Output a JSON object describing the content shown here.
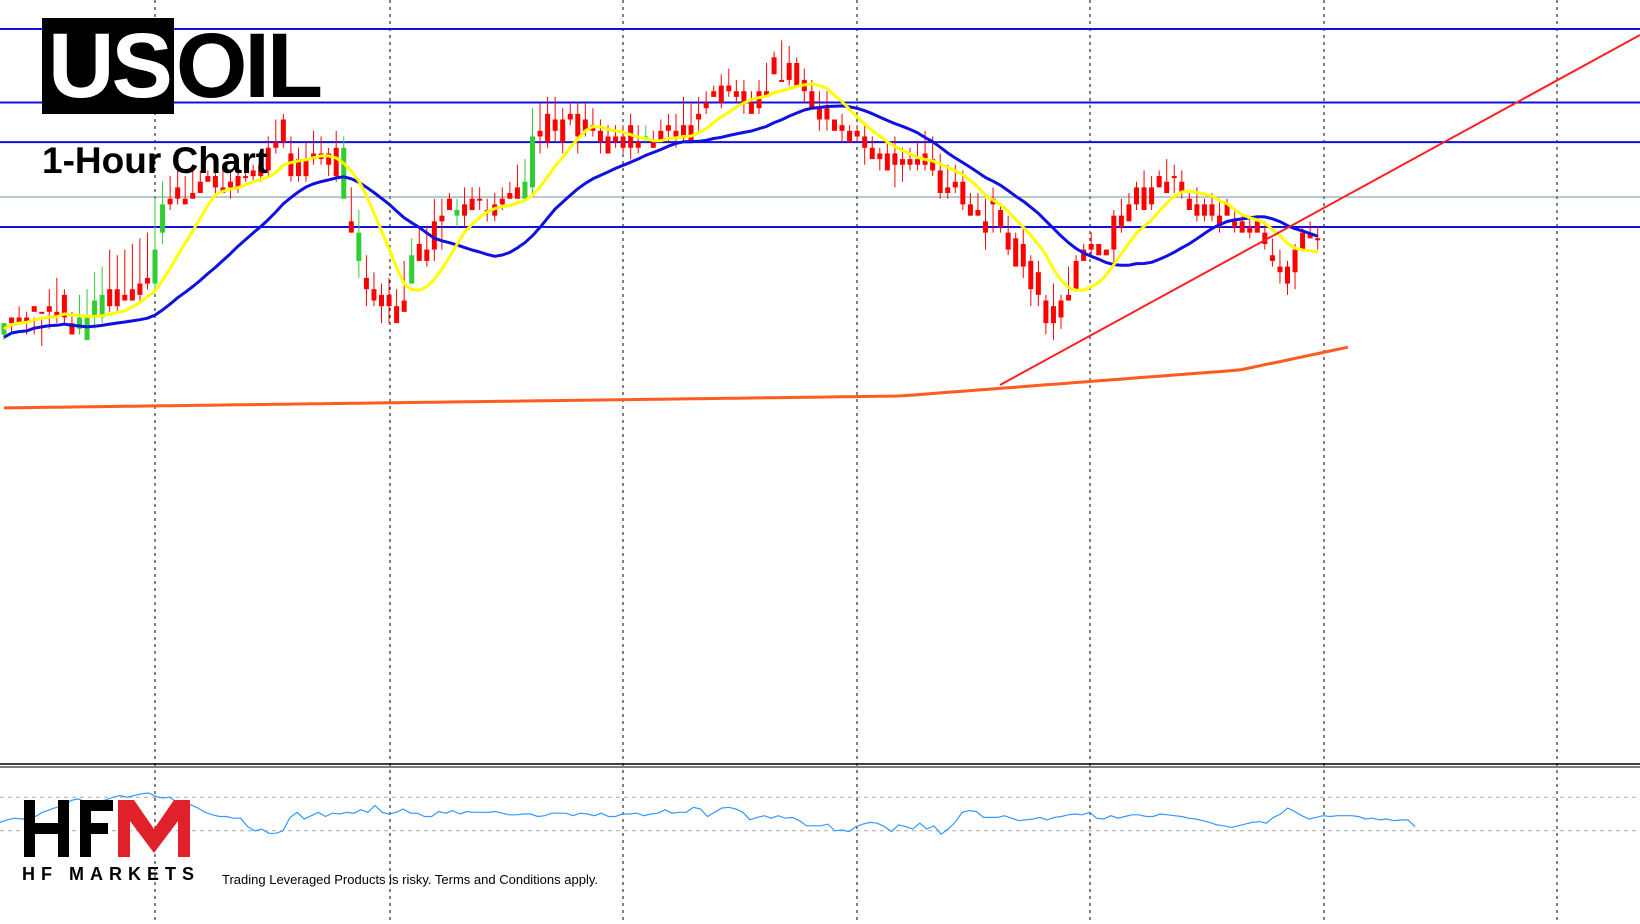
{
  "header": {
    "title_inverted": "US",
    "title_rest": "OIL",
    "subtitle": "1-Hour Chart"
  },
  "brand": {
    "logo_text": "HFM",
    "logo_subtext": "HF MARKETS",
    "disclaimer": "Trading Leveraged Products is risky. Terms and Conditions apply."
  },
  "colors": {
    "bull_candle": "#33cc33",
    "bear_candle": "#ff0000",
    "fast_ma": "#ffff00",
    "slow_ma": "#1010e0",
    "long_ma": "#ff5a1f",
    "trendline": "#ff2020",
    "horizontal_levels": "#1010e0",
    "oscillator": "#3399ff",
    "logo_red": "#e0202a"
  },
  "chart_data": {
    "type": "candlestick",
    "title": "",
    "xlabel": "",
    "ylabel": "",
    "grid": true,
    "legend": "none",
    "ylim": [
      1,
      100
    ],
    "candles": [
      [
        53,
        53,
        55,
        56,
        3
      ],
      [
        52,
        52,
        53,
        55,
        -2
      ],
      [
        50,
        52,
        53,
        53,
        -2
      ],
      [
        51,
        52,
        53,
        55,
        -2
      ],
      [
        52,
        50,
        51,
        55,
        -2
      ],
      [
        52,
        51,
        51,
        57,
        -2
      ],
      [
        47,
        50,
        51,
        54,
        -2
      ],
      [
        45,
        51,
        52,
        53,
        -3
      ],
      [
        47,
        48,
        52,
        53,
        -4
      ],
      [
        51,
        53,
        55,
        55,
        -3
      ],
      [
        48,
        52,
        54,
        55,
        5
      ],
      [
        47,
        52,
        56,
        56,
        3
      ],
      [
        44,
        49,
        52,
        54,
        2
      ],
      [
        43,
        48,
        52,
        53,
        4
      ],
      [
        40,
        47,
        50,
        51,
        -3
      ],
      [
        41,
        47,
        50,
        51,
        -2
      ],
      [
        40,
        48,
        49,
        49,
        -2
      ],
      [
        39,
        47,
        49,
        49,
        -3
      ],
      [
        38,
        46,
        48,
        49,
        -3
      ],
      [
        37,
        45,
        46,
        47,
        -4
      ],
      [
        31,
        40,
        46,
        47,
        9
      ],
      [
        28,
        32,
        37,
        39,
        3
      ],
      [
        27,
        31,
        32,
        33,
        -3
      ],
      [
        26,
        29,
        31,
        32,
        -2
      ],
      [
        27,
        31,
        32,
        32,
        -3
      ],
      [
        26,
        30,
        31,
        31,
        -2
      ],
      [
        26,
        28,
        30,
        30,
        -2
      ],
      [
        26,
        27,
        28,
        28,
        -3
      ],
      [
        25,
        27,
        29,
        30,
        -3
      ],
      [
        26,
        29,
        30,
        30,
        -2
      ],
      [
        26,
        28,
        29,
        31,
        -3
      ],
      [
        25,
        27,
        29,
        30,
        -4
      ],
      [
        25,
        27,
        27,
        28,
        -2
      ],
      [
        25,
        26,
        27,
        28,
        -2
      ],
      [
        23,
        25,
        27,
        28,
        -2
      ],
      [
        20,
        22,
        26,
        27,
        -3
      ],
      [
        17,
        21,
        22,
        23,
        -3
      ],
      [
        16,
        17,
        21,
        22,
        -3
      ],
      [
        20,
        23,
        27,
        28,
        -3
      ],
      [
        22,
        24,
        27,
        28,
        -2
      ],
      [
        21,
        24,
        27,
        28,
        -3
      ],
      [
        19,
        23,
        24,
        25,
        -2
      ],
      [
        20,
        23,
        24,
        25,
        -3
      ],
      [
        22,
        23,
        25,
        27,
        -2
      ],
      [
        19,
        22,
        27,
        28,
        -2
      ],
      [
        20,
        22,
        31,
        31,
        5
      ],
      [
        29,
        35,
        37,
        37,
        -3
      ],
      [
        33,
        37,
        42,
        45,
        5
      ],
      [
        41,
        45,
        47,
        50,
        -2
      ],
      [
        44,
        47,
        49,
        50,
        -3
      ],
      [
        46,
        48,
        50,
        53,
        -2
      ],
      [
        45,
        48,
        50,
        53,
        -5
      ],
      [
        47,
        50,
        53,
        53,
        -4
      ],
      [
        42,
        49,
        51,
        51,
        -5
      ],
      [
        38,
        41,
        46,
        46,
        6
      ],
      [
        36,
        39,
        42,
        42,
        -3
      ],
      [
        36,
        40,
        42,
        43,
        -3
      ],
      [
        31,
        35,
        40,
        42,
        -4
      ],
      [
        31,
        34,
        35,
        40,
        -3
      ],
      [
        30,
        31,
        33,
        33,
        -3
      ],
      [
        31,
        33,
        34,
        36,
        3
      ],
      [
        29,
        32,
        34,
        36,
        -2
      ],
      [
        29,
        31,
        33,
        33,
        -2
      ],
      [
        29,
        31,
        31,
        33,
        -3
      ],
      [
        31,
        33,
        33,
        35,
        -2
      ],
      [
        30,
        32,
        34,
        35,
        -2
      ],
      [
        29,
        31,
        32,
        33,
        -3
      ],
      [
        28,
        30,
        31,
        31,
        -2
      ],
      [
        25,
        29,
        31,
        31,
        -2
      ],
      [
        24,
        28,
        31,
        31,
        4
      ],
      [
        15,
        20,
        29,
        30,
        6
      ],
      [
        14,
        19,
        20,
        23,
        -3
      ],
      [
        13,
        16,
        21,
        22,
        -3
      ],
      [
        13,
        17,
        19,
        21,
        -2
      ],
      [
        15,
        17,
        21,
        23,
        -3
      ],
      [
        14,
        16,
        17,
        18,
        -3
      ],
      [
        14,
        16,
        20,
        23,
        -2
      ],
      [
        14,
        17,
        19,
        20,
        -3
      ],
      [
        15,
        18,
        19,
        20,
        -2
      ],
      [
        17,
        19,
        21,
        23,
        -2
      ],
      [
        18,
        20,
        23,
        23,
        -2
      ],
      [
        18,
        20,
        21,
        22,
        -4
      ],
      [
        18,
        20,
        22,
        23,
        -3
      ],
      [
        16,
        18,
        22,
        24,
        -4
      ],
      [
        18,
        21,
        22,
        23,
        -2
      ],
      [
        18,
        20,
        20,
        21,
        3
      ],
      [
        19,
        21,
        22,
        22,
        -3
      ],
      [
        17,
        19,
        21,
        21,
        -3
      ],
      [
        16,
        18,
        19,
        21,
        -2
      ],
      [
        16,
        19,
        20,
        22,
        -3
      ],
      [
        13,
        18,
        20,
        21,
        -2
      ],
      [
        14,
        18,
        21,
        21,
        -2
      ],
      [
        13,
        16,
        17,
        19,
        -2
      ],
      [
        12,
        14,
        15,
        16,
        -2
      ],
      [
        11,
        12,
        13,
        13,
        -2
      ],
      [
        9,
        11,
        14,
        15,
        -2
      ],
      [
        8,
        11,
        12,
        13,
        -2
      ],
      [
        10,
        12,
        13,
        14,
        -3
      ],
      [
        10,
        12,
        14,
        16,
        -3
      ],
      [
        12,
        14,
        16,
        16,
        -2
      ],
      [
        10,
        12,
        15,
        16,
        -3
      ],
      [
        7,
        12,
        13,
        13,
        -3
      ],
      [
        5,
        6,
        9,
        9,
        -3
      ],
      [
        3,
        10,
        10,
        10,
        -3
      ],
      [
        4,
        7,
        10,
        11,
        -3
      ],
      [
        6,
        7,
        11,
        11,
        -2
      ],
      [
        8,
        10,
        12,
        14,
        -2
      ],
      [
        10,
        12,
        15,
        15,
        -3
      ],
      [
        12,
        15,
        17,
        19,
        -3
      ],
      [
        12,
        15,
        17,
        19,
        -3
      ],
      [
        17,
        17,
        19,
        19,
        -3
      ],
      [
        16,
        18,
        19,
        21,
        -2
      ],
      [
        18,
        19,
        21,
        21,
        -2
      ],
      [
        18,
        19,
        20,
        21,
        -3
      ],
      [
        18,
        20,
        22,
        25,
        -3
      ],
      [
        20,
        22,
        24,
        24,
        -3
      ],
      [
        22,
        23,
        24,
        26,
        -3
      ],
      [
        21,
        23,
        26,
        26,
        -2
      ],
      [
        20,
        23,
        25,
        29,
        -2
      ],
      [
        22,
        24,
        25,
        28,
        -4
      ],
      [
        22,
        24,
        25,
        26,
        -3
      ],
      [
        21,
        24,
        25,
        26,
        -2
      ],
      [
        19,
        23,
        25,
        26,
        -5
      ],
      [
        20,
        24,
        26,
        27,
        -2
      ],
      [
        23,
        26,
        30,
        31,
        -3
      ],
      [
        25,
        29,
        30,
        31,
        -2
      ],
      [
        25,
        28,
        29,
        30,
        -4
      ],
      [
        26,
        28,
        32,
        33,
        -4
      ],
      [
        30,
        32,
        34,
        34,
        -3
      ],
      [
        30,
        33,
        34,
        34,
        -4
      ],
      [
        31,
        35,
        37,
        40,
        -2
      ],
      [
        29,
        31,
        32,
        37,
        -3
      ],
      [
        32,
        33,
        36,
        37,
        -2
      ],
      [
        34,
        37,
        40,
        41,
        -2
      ],
      [
        37,
        38,
        43,
        43,
        -2
      ],
      [
        36,
        39,
        43,
        45,
        -2
      ],
      [
        41,
        42,
        47,
        50,
        -4
      ],
      [
        42,
        44,
        48,
        50,
        -3
      ],
      [
        48,
        49,
        53,
        55,
        -4
      ],
      [
        46,
        50,
        53,
        56,
        -2
      ],
      [
        48,
        49,
        52,
        54,
        -2
      ],
      [
        43,
        48,
        49,
        49,
        -2
      ],
      [
        41,
        42,
        47,
        47,
        -4
      ],
      [
        39,
        40,
        42,
        42,
        -3
      ],
      [
        37,
        39,
        40,
        41,
        -3
      ],
      [
        39,
        39,
        41,
        41,
        -2
      ],
      [
        40,
        40,
        41,
        41,
        -3
      ],
      [
        33,
        34,
        40,
        43,
        -5
      ],
      [
        31,
        34,
        36,
        37,
        -2
      ],
      [
        30,
        32,
        35,
        35,
        -2
      ],
      [
        28,
        29,
        32,
        33,
        -2
      ],
      [
        26,
        29,
        33,
        33,
        -5
      ],
      [
        27,
        29,
        32,
        33,
        -2
      ],
      [
        26,
        27,
        29,
        29,
        -3
      ],
      [
        24,
        28,
        30,
        30,
        -3
      ],
      [
        25,
        27,
        27,
        30,
        -2
      ],
      [
        26,
        28,
        30,
        31,
        -4
      ],
      [
        30,
        31,
        33,
        33,
        -3
      ],
      [
        29,
        32,
        34,
        35,
        -2
      ],
      [
        31,
        32,
        34,
        35,
        -3
      ],
      [
        30,
        32,
        34,
        35,
        -2
      ],
      [
        31,
        34,
        36,
        37,
        -3
      ],
      [
        31,
        32,
        34,
        34,
        -3
      ],
      [
        33,
        35,
        36,
        37,
        -2
      ],
      [
        34,
        35,
        37,
        37,
        -2
      ],
      [
        34,
        36,
        37,
        38,
        -2
      ],
      [
        34,
        35,
        37,
        37,
        -3
      ],
      [
        35,
        37,
        39,
        40,
        -2
      ],
      [
        38,
        41,
        42,
        43,
        -2
      ],
      [
        40,
        43,
        44,
        46,
        -2
      ],
      [
        42,
        43,
        46,
        48,
        -2
      ],
      [
        39,
        40,
        44,
        47,
        -3
      ],
      [
        36,
        37,
        40,
        40,
        -4
      ],
      [
        35,
        37,
        38,
        38,
        -3
      ],
      [
        36,
        38,
        38,
        40,
        -2
      ]
    ],
    "fast_ma": [],
    "slow_ma": [],
    "long_ma": [],
    "horizontal_levels": [
      1,
      14,
      21,
      36
    ],
    "trendline": [
      [
        0,
        69
      ],
      [
        400,
        1
      ]
    ],
    "oscillator": {
      "levels": [
        70,
        30
      ],
      "values": [
        40,
        43,
        45,
        44,
        44,
        47,
        52,
        55,
        58,
        58,
        66,
        68,
        65,
        64,
        64,
        67,
        70,
        72,
        70,
        72,
        74,
        75,
        71,
        69,
        70,
        64,
        58,
        61,
        57,
        52,
        49,
        47,
        47,
        45,
        45,
        35,
        30,
        32,
        27,
        27,
        30,
        46,
        52,
        44,
        48,
        52,
        47,
        51,
        50,
        52,
        51,
        55,
        52,
        60,
        52,
        50,
        52,
        56,
        51,
        51,
        47,
        47,
        53,
        51,
        54,
        50,
        53,
        52,
        52,
        52,
        53,
        51,
        49,
        49,
        50,
        50,
        47,
        48,
        51,
        51,
        51,
        48,
        51,
        50,
        48,
        51,
        47,
        47,
        50,
        50,
        51,
        48,
        50,
        51,
        55,
        51,
        52,
        52,
        58,
        56,
        47,
        52,
        57,
        58,
        56,
        52,
        43,
        46,
        48,
        45,
        48,
        45,
        46,
        42,
        36,
        36,
        36,
        38,
        30,
        31,
        29,
        35,
        38,
        40,
        39,
        35,
        29,
        37,
        35,
        32,
        39,
        32,
        36,
        26,
        32,
        40,
        52,
        54,
        53,
        46,
        46,
        46,
        48,
        45,
        42,
        43,
        44,
        46,
        43,
        46,
        47,
        49,
        50,
        49,
        52,
        45,
        44,
        48,
        45,
        47,
        49,
        49,
        47,
        47,
        50,
        49,
        48,
        47,
        45,
        44,
        42,
        40,
        37,
        36,
        34,
        36,
        38,
        40,
        41,
        39,
        46,
        50,
        57,
        53,
        48,
        44,
        46,
        48,
        47,
        48,
        48,
        48,
        47,
        44,
        45,
        43,
        44,
        42,
        43,
        43,
        35
      ]
    }
  }
}
